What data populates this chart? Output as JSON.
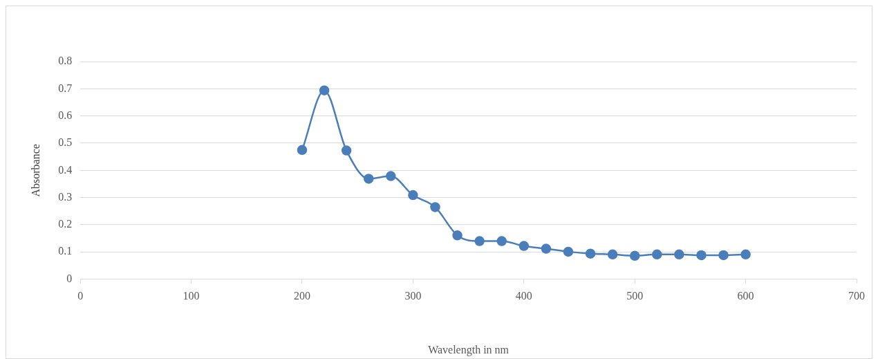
{
  "chart_data": {
    "type": "line",
    "xlabel": "Wavelength in nm",
    "ylabel": "Absorbance",
    "x": [
      200,
      220,
      240,
      260,
      280,
      300,
      320,
      340,
      360,
      380,
      400,
      420,
      440,
      460,
      480,
      500,
      520,
      540,
      560,
      580,
      600
    ],
    "series": [
      {
        "color": "#4a7ebb",
        "values": [
          0.475,
          0.694,
          0.473,
          0.369,
          0.379,
          0.309,
          0.265,
          0.161,
          0.14,
          0.14,
          0.122,
          0.112,
          0.101,
          0.094,
          0.091,
          0.086,
          0.091,
          0.091,
          0.088,
          0.088,
          0.091
        ]
      }
    ],
    "xlim": [
      0,
      700
    ],
    "xticks": [
      0,
      100,
      200,
      300,
      400,
      500,
      600,
      700
    ],
    "ylim": [
      0,
      0.8
    ],
    "yticks": [
      0,
      0.1,
      0.2,
      0.3,
      0.4,
      0.5,
      0.6,
      0.7,
      0.8
    ],
    "grid": "y",
    "legend": false,
    "marker": "circle",
    "line_style": "solid"
  }
}
